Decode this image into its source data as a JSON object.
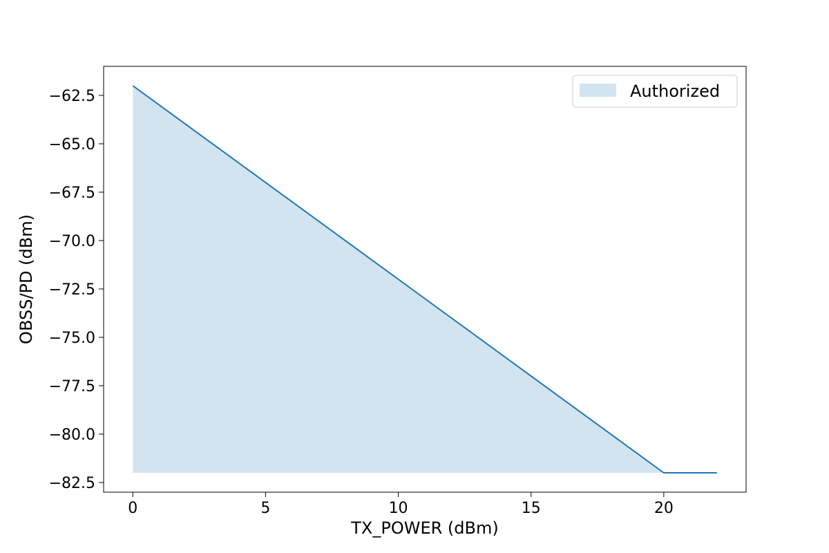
{
  "chart_data": {
    "type": "area",
    "title": "",
    "xlabel": "TX_POWER (dBm)",
    "ylabel": "OBSS/PD (dBm)",
    "xlim": [
      -1.1,
      23.1
    ],
    "ylim": [
      -83.0,
      -61.0
    ],
    "xticks": [
      0,
      5,
      10,
      15,
      20
    ],
    "xtick_labels": [
      "0",
      "5",
      "10",
      "15",
      "20"
    ],
    "yticks": [
      -62.5,
      -65.0,
      -67.5,
      -70.0,
      -72.5,
      -75.0,
      -77.5,
      -80.0,
      -82.5
    ],
    "ytick_labels": [
      "−62.5",
      "−65.0",
      "−67.5",
      "−70.0",
      "−72.5",
      "−75.0",
      "−77.5",
      "−80.0",
      "−82.5"
    ],
    "grid": false,
    "legend": {
      "location": "top-right",
      "entries": [
        "Authorized"
      ]
    },
    "line": {
      "x": [
        0,
        20,
        22
      ],
      "y": [
        -62,
        -82,
        -82
      ],
      "color": "#1f77b4"
    },
    "fill": {
      "name": "Authorized",
      "x": [
        0,
        20
      ],
      "y_top": [
        -62,
        -82
      ],
      "y_bottom": -82,
      "color": "#1f77b4",
      "alpha": 0.2
    }
  }
}
